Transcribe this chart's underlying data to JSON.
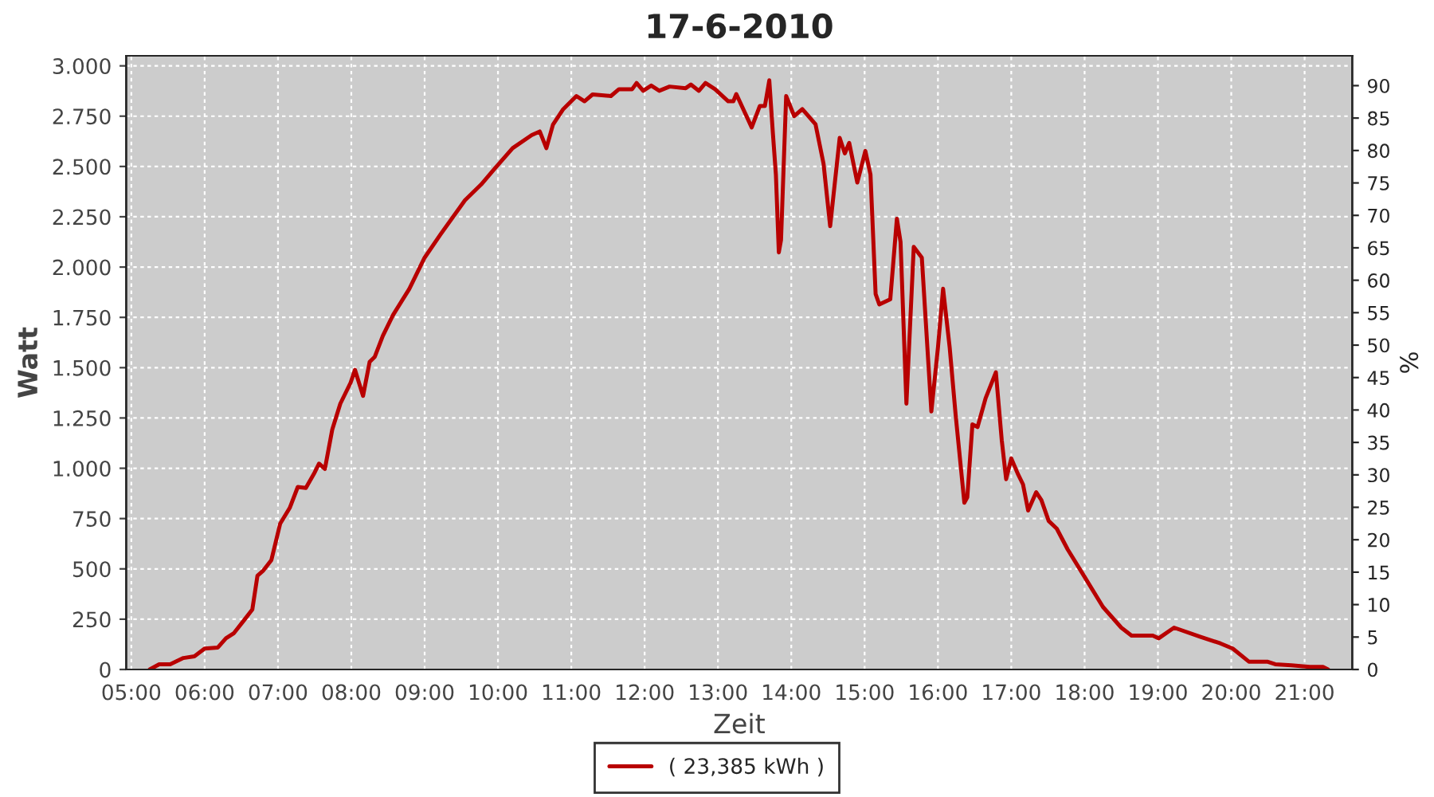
{
  "chart_data": {
    "type": "line",
    "title": "17-6-2010",
    "xlabel": "Zeit",
    "ylabel": "Watt",
    "y2label": "%",
    "xlim": [
      4.93,
      21.65
    ],
    "xticks": [
      {
        "value": 5,
        "label": "05:00"
      },
      {
        "value": 6,
        "label": "06:00"
      },
      {
        "value": 7,
        "label": "07:00"
      },
      {
        "value": 8,
        "label": "08:00"
      },
      {
        "value": 9,
        "label": "09:00"
      },
      {
        "value": 10,
        "label": "10:00"
      },
      {
        "value": 11,
        "label": "11:00"
      },
      {
        "value": 12,
        "label": "12:00"
      },
      {
        "value": 13,
        "label": "13:00"
      },
      {
        "value": 14,
        "label": "14:00"
      },
      {
        "value": 15,
        "label": "15:00"
      },
      {
        "value": 16,
        "label": "16:00"
      },
      {
        "value": 17,
        "label": "17:00"
      },
      {
        "value": 18,
        "label": "18:00"
      },
      {
        "value": 19,
        "label": "19:00"
      },
      {
        "value": 20,
        "label": "20:00"
      },
      {
        "value": 21,
        "label": "21:00"
      }
    ],
    "ylim": [
      0,
      3050
    ],
    "yticks": [
      0,
      250,
      500,
      750,
      {
        "value": 1000,
        "label": "1.000"
      },
      {
        "value": 1250,
        "label": "1.250"
      },
      {
        "value": 1500,
        "label": "1.500"
      },
      {
        "value": 1750,
        "label": "1.750"
      },
      {
        "value": 2000,
        "label": "2.000"
      },
      {
        "value": 2250,
        "label": "2.250"
      },
      {
        "value": 2500,
        "label": "2.500"
      },
      {
        "value": 2750,
        "label": "2.750"
      },
      {
        "value": 3000,
        "label": "3.000"
      }
    ],
    "y2lim": [
      0,
      94.6
    ],
    "y2ticks": [
      0,
      5,
      10,
      15,
      20,
      25,
      30,
      35,
      40,
      45,
      50,
      55,
      60,
      65,
      70,
      75,
      80,
      85,
      90
    ],
    "grid": true,
    "legend": "bottom",
    "marker": "none",
    "line_style": "solid",
    "series": [
      {
        "name": "( 23,385 kWh )",
        "color": "#b80000",
        "x": [
          5.25,
          5.38,
          5.53,
          5.71,
          5.86,
          6.0,
          6.18,
          6.29,
          6.4,
          6.54,
          6.65,
          6.72,
          6.8,
          6.91,
          7.03,
          7.16,
          7.27,
          7.38,
          7.49,
          7.56,
          7.64,
          7.74,
          7.85,
          7.99,
          8.05,
          8.16,
          8.25,
          8.32,
          8.43,
          8.57,
          8.79,
          9.0,
          9.22,
          9.55,
          9.77,
          9.95,
          10.2,
          10.46,
          10.57,
          10.66,
          10.75,
          10.89,
          11.07,
          11.18,
          11.29,
          11.54,
          11.65,
          11.83,
          11.89,
          11.98,
          12.09,
          12.2,
          12.34,
          12.56,
          12.63,
          12.74,
          12.83,
          12.96,
          13.14,
          13.21,
          13.25,
          13.46,
          13.57,
          13.64,
          13.7,
          13.75,
          13.79,
          13.83,
          13.86,
          13.93,
          14.04,
          14.15,
          14.33,
          14.44,
          14.53,
          14.66,
          14.73,
          14.79,
          14.9,
          15.01,
          15.08,
          15.15,
          15.2,
          15.35,
          15.44,
          15.49,
          15.57,
          15.67,
          15.78,
          15.91,
          16.0,
          16.07,
          16.16,
          16.24,
          16.36,
          16.4,
          16.47,
          16.54,
          16.65,
          16.79,
          16.87,
          16.93,
          17.0,
          17.09,
          17.16,
          17.23,
          17.34,
          17.41,
          17.51,
          17.62,
          17.77,
          17.99,
          18.25,
          18.5,
          18.64,
          18.93,
          19.01,
          19.22,
          19.59,
          19.85,
          20.02,
          20.24,
          20.49,
          20.6,
          20.82,
          21.07,
          21.25,
          21.32
        ],
        "values": [
          0,
          26,
          26,
          57,
          65,
          104,
          109,
          155,
          181,
          246,
          298,
          466,
          492,
          544,
          725,
          803,
          907,
          902,
          972,
          1023,
          997,
          1192,
          1321,
          1425,
          1489,
          1360,
          1529,
          1554,
          1658,
          1762,
          1891,
          2047,
          2164,
          2332,
          2410,
          2487,
          2591,
          2656,
          2674,
          2591,
          2708,
          2785,
          2850,
          2824,
          2858,
          2850,
          2884,
          2884,
          2915,
          2876,
          2902,
          2876,
          2897,
          2889,
          2907,
          2876,
          2915,
          2884,
          2824,
          2824,
          2860,
          2694,
          2800,
          2800,
          2928,
          2660,
          2460,
          2073,
          2135,
          2850,
          2750,
          2785,
          2710,
          2513,
          2203,
          2642,
          2565,
          2617,
          2420,
          2577,
          2460,
          1866,
          1814,
          1840,
          2240,
          2125,
          1321,
          2100,
          2047,
          1282,
          1600,
          1892,
          1600,
          1270,
          829,
          855,
          1218,
          1205,
          1348,
          1477,
          1140,
          946,
          1049,
          972,
          920,
          790,
          881,
          842,
          738,
          700,
          596,
          466,
          311,
          208,
          168,
          168,
          155,
          208,
          161,
          130,
          104,
          39,
          39,
          26,
          21,
          13,
          13,
          0
        ]
      }
    ]
  }
}
